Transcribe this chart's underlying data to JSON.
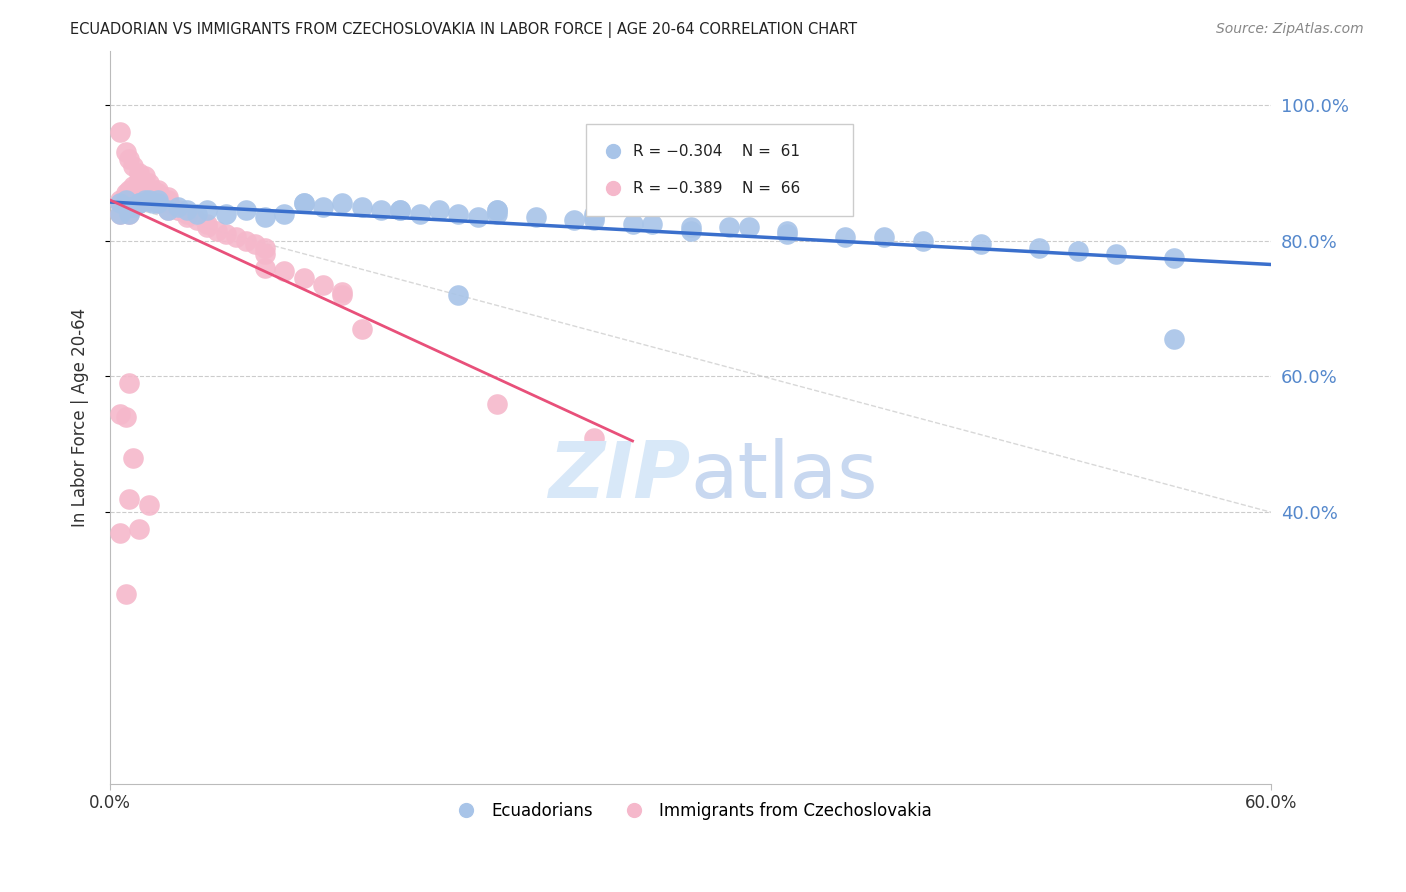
{
  "title": "ECUADORIAN VS IMMIGRANTS FROM CZECHOSLOVAKIA IN LABOR FORCE | AGE 20-64 CORRELATION CHART",
  "source": "Source: ZipAtlas.com",
  "ylabel": "In Labor Force | Age 20-64",
  "xlim": [
    0.0,
    0.6
  ],
  "ylim": [
    0.0,
    1.08
  ],
  "yticks": [
    0.4,
    0.6,
    0.8,
    1.0
  ],
  "ytick_labels": [
    "40.0%",
    "60.0%",
    "80.0%",
    "100.0%"
  ],
  "blue_R": -0.304,
  "blue_N": 61,
  "pink_R": -0.389,
  "pink_N": 66,
  "blue_color": "#a8c4e8",
  "pink_color": "#f5b8cb",
  "blue_line_color": "#3a6fcc",
  "pink_line_color": "#e8507a",
  "dashed_line_color": "#c8c8c8",
  "grid_color": "#cccccc",
  "axis_color": "#bbbbbb",
  "right_tick_color": "#5588cc",
  "watermark_color": "#d8e8f8",
  "blue_scatter_x": [
    0.005,
    0.008,
    0.01,
    0.012,
    0.015,
    0.018,
    0.02,
    0.022,
    0.025,
    0.005,
    0.01,
    0.015,
    0.02,
    0.025,
    0.03,
    0.035,
    0.04,
    0.045,
    0.05,
    0.06,
    0.07,
    0.08,
    0.09,
    0.1,
    0.11,
    0.12,
    0.13,
    0.14,
    0.15,
    0.16,
    0.17,
    0.18,
    0.19,
    0.2,
    0.22,
    0.24,
    0.25,
    0.27,
    0.28,
    0.3,
    0.32,
    0.33,
    0.35,
    0.38,
    0.4,
    0.42,
    0.45,
    0.48,
    0.5,
    0.52,
    0.55,
    0.25,
    0.2,
    0.15,
    0.1,
    0.3,
    0.35,
    0.2,
    0.25,
    0.18,
    0.55
  ],
  "blue_scatter_y": [
    0.855,
    0.86,
    0.84,
    0.85,
    0.855,
    0.86,
    0.858,
    0.855,
    0.86,
    0.84,
    0.85,
    0.855,
    0.86,
    0.855,
    0.845,
    0.85,
    0.845,
    0.84,
    0.845,
    0.84,
    0.845,
    0.835,
    0.84,
    0.855,
    0.85,
    0.855,
    0.85,
    0.845,
    0.845,
    0.84,
    0.845,
    0.84,
    0.835,
    0.84,
    0.835,
    0.83,
    0.83,
    0.825,
    0.825,
    0.815,
    0.82,
    0.82,
    0.81,
    0.805,
    0.805,
    0.8,
    0.795,
    0.79,
    0.785,
    0.78,
    0.775,
    0.84,
    0.845,
    0.845,
    0.855,
    0.82,
    0.815,
    0.845,
    0.835,
    0.72,
    0.655
  ],
  "pink_scatter_x": [
    0.005,
    0.005,
    0.005,
    0.008,
    0.008,
    0.008,
    0.01,
    0.01,
    0.01,
    0.012,
    0.012,
    0.015,
    0.015,
    0.015,
    0.018,
    0.018,
    0.02,
    0.02,
    0.02,
    0.022,
    0.025,
    0.025,
    0.025,
    0.03,
    0.03,
    0.03,
    0.035,
    0.04,
    0.04,
    0.045,
    0.05,
    0.05,
    0.055,
    0.06,
    0.065,
    0.07,
    0.075,
    0.08,
    0.08,
    0.005,
    0.008,
    0.01,
    0.012,
    0.015,
    0.018,
    0.02,
    0.025,
    0.03,
    0.01,
    0.008,
    0.005,
    0.012,
    0.015,
    0.02,
    0.01,
    0.005,
    0.008,
    0.12,
    0.13,
    0.2,
    0.25,
    0.08,
    0.09,
    0.1,
    0.11,
    0.12
  ],
  "pink_scatter_y": [
    0.855,
    0.84,
    0.86,
    0.855,
    0.865,
    0.87,
    0.86,
    0.84,
    0.875,
    0.88,
    0.87,
    0.87,
    0.855,
    0.89,
    0.88,
    0.875,
    0.87,
    0.865,
    0.86,
    0.875,
    0.87,
    0.855,
    0.86,
    0.855,
    0.845,
    0.86,
    0.845,
    0.84,
    0.835,
    0.83,
    0.825,
    0.82,
    0.815,
    0.81,
    0.805,
    0.8,
    0.795,
    0.79,
    0.78,
    0.96,
    0.93,
    0.92,
    0.91,
    0.9,
    0.895,
    0.885,
    0.875,
    0.865,
    0.59,
    0.54,
    0.545,
    0.48,
    0.375,
    0.41,
    0.42,
    0.37,
    0.28,
    0.72,
    0.67,
    0.56,
    0.51,
    0.76,
    0.755,
    0.745,
    0.735,
    0.725
  ]
}
